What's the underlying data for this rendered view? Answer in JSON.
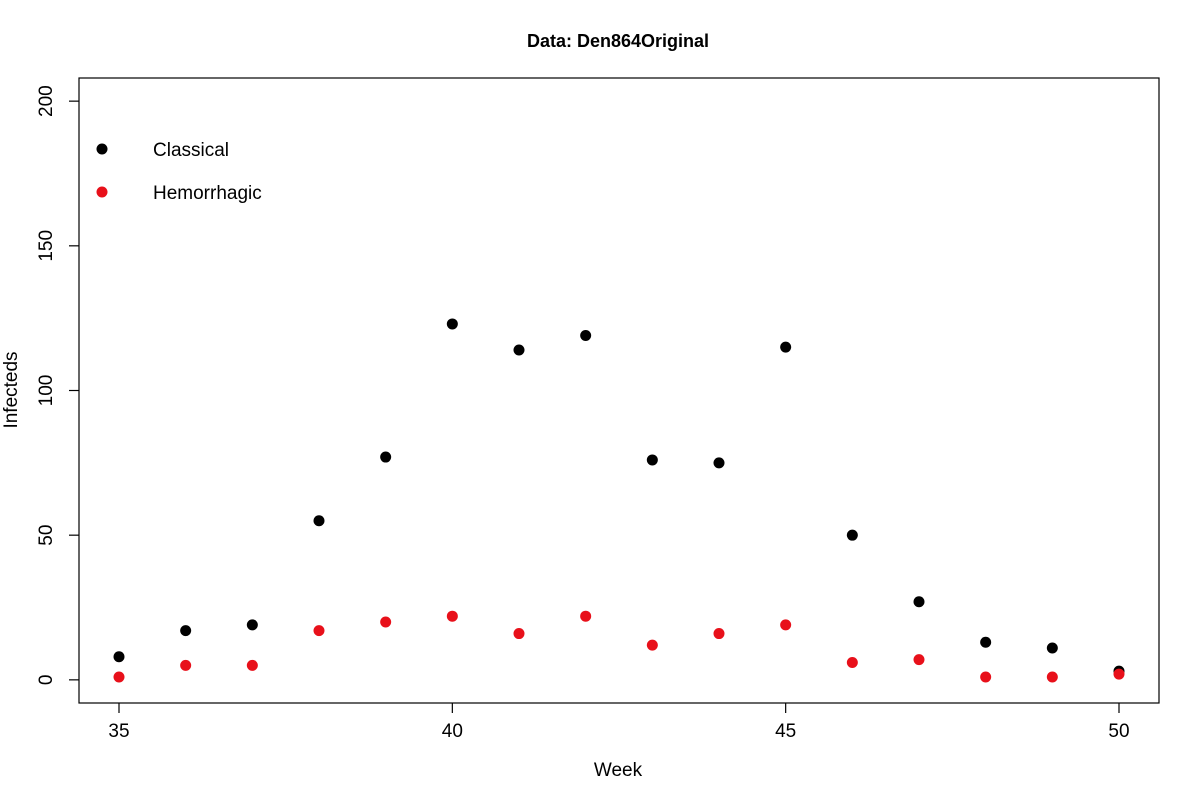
{
  "chart_data": {
    "type": "scatter",
    "title": "Data: Den864Original",
    "xlabel": "Week",
    "ylabel": "Infecteds",
    "xlim": [
      34.4,
      50.6
    ],
    "ylim": [
      -8,
      208
    ],
    "x_ticks": [
      35,
      40,
      45,
      50
    ],
    "y_ticks": [
      0,
      50,
      100,
      150,
      200
    ],
    "legend_position": "top-left",
    "grid": false,
    "series": [
      {
        "name": "Classical",
        "color": "#000000",
        "x": [
          35,
          36,
          37,
          38,
          39,
          40,
          41,
          42,
          43,
          44,
          45,
          46,
          47,
          48,
          49,
          50
        ],
        "y": [
          8,
          17,
          19,
          55,
          77,
          123,
          114,
          119,
          76,
          75,
          115,
          50,
          27,
          13,
          11,
          3
        ]
      },
      {
        "name": "Hemorrhagic",
        "color": "#e8101a",
        "x": [
          35,
          36,
          37,
          38,
          39,
          40,
          41,
          42,
          43,
          44,
          45,
          46,
          47,
          48,
          49,
          50
        ],
        "y": [
          1,
          5,
          5,
          17,
          20,
          22,
          16,
          22,
          12,
          16,
          19,
          6,
          7,
          1,
          1,
          2
        ]
      }
    ]
  }
}
